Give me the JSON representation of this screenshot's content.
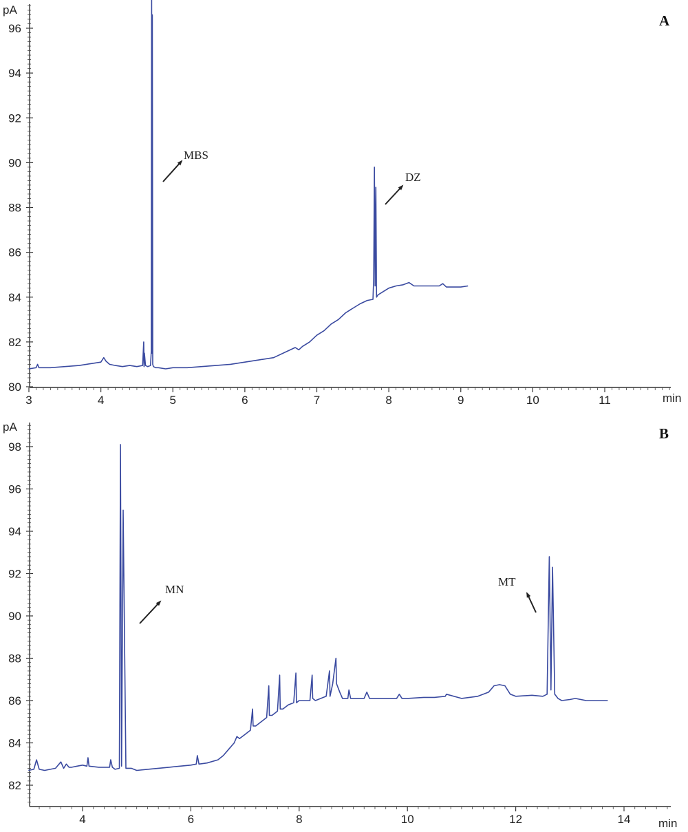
{
  "chart_data": [
    {
      "type": "line",
      "panel_label": "A",
      "ylabel": "pA",
      "xlabel": "min",
      "xlim": [
        3,
        12
      ],
      "ylim": [
        80,
        97.8
      ],
      "xticks": [
        3,
        4,
        5,
        6,
        7,
        8,
        9,
        10,
        11
      ],
      "yticks": [
        80,
        82,
        84,
        86,
        88,
        90,
        92,
        94,
        96
      ],
      "grid": false,
      "color": "#3a4aa0",
      "series": [
        {
          "x": [
            3.0,
            3.1,
            3.12,
            3.14,
            3.3,
            3.5,
            3.7,
            3.9,
            4.0,
            4.04,
            4.07,
            4.12,
            4.2,
            4.3,
            4.4,
            4.5,
            4.58,
            4.595,
            4.6,
            4.605,
            4.62,
            4.65,
            4.69,
            4.7,
            4.705,
            4.71,
            4.715,
            4.72,
            4.73,
            4.76,
            4.8,
            4.9,
            5.0,
            5.2,
            5.4,
            5.6,
            5.8,
            6.0,
            6.2,
            6.4,
            6.6,
            6.7,
            6.75,
            6.8,
            6.9,
            7.0,
            7.1,
            7.2,
            7.3,
            7.4,
            7.5,
            7.6,
            7.7,
            7.78,
            7.79,
            7.8,
            7.81,
            7.82,
            7.83,
            7.85,
            7.9,
            8.0,
            8.1,
            8.2,
            8.28,
            8.35,
            8.5,
            8.6,
            8.7,
            8.75,
            8.8,
            8.9,
            9.0,
            9.1
          ],
          "y": [
            80.8,
            80.85,
            81.0,
            80.85,
            80.85,
            80.9,
            80.95,
            81.05,
            81.1,
            81.3,
            81.15,
            81.0,
            80.95,
            80.9,
            80.95,
            80.9,
            80.95,
            82.0,
            80.9,
            81.5,
            80.95,
            80.9,
            80.95,
            81.6,
            97.3,
            81.5,
            96.6,
            81.0,
            80.9,
            80.85,
            80.85,
            80.8,
            80.85,
            80.85,
            80.9,
            80.95,
            81.0,
            81.1,
            81.2,
            81.3,
            81.6,
            81.75,
            81.65,
            81.8,
            82.0,
            82.3,
            82.5,
            82.8,
            83.0,
            83.3,
            83.5,
            83.7,
            83.85,
            83.9,
            84.9,
            89.8,
            84.5,
            88.9,
            84.0,
            84.1,
            84.2,
            84.4,
            84.5,
            84.55,
            84.65,
            84.5,
            84.5,
            84.5,
            84.5,
            84.6,
            84.45,
            84.45,
            84.45,
            84.5
          ]
        }
      ],
      "annotations": [
        "MBS",
        "DZ"
      ]
    },
    {
      "type": "line",
      "panel_label": "B",
      "ylabel": "pA",
      "xlabel": "min",
      "xlim": [
        3,
        15
      ],
      "ylim": [
        81.2,
        99.9
      ],
      "xticks": [
        4,
        6,
        8,
        10,
        12,
        14
      ],
      "yticks": [
        82,
        84,
        86,
        88,
        90,
        92,
        94,
        96,
        98
      ],
      "grid": false,
      "color": "#3a4aa0",
      "series": [
        {
          "x": [
            3.0,
            3.1,
            3.15,
            3.2,
            3.3,
            3.5,
            3.6,
            3.65,
            3.7,
            3.75,
            3.8,
            3.9,
            4.0,
            4.08,
            4.1,
            4.12,
            4.3,
            4.5,
            4.52,
            4.55,
            4.6,
            4.68,
            4.7,
            4.72,
            4.75,
            4.8,
            4.9,
            5.0,
            5.2,
            5.4,
            5.6,
            5.8,
            6.0,
            6.1,
            6.12,
            6.15,
            6.3,
            6.5,
            6.6,
            6.7,
            6.8,
            6.85,
            6.9,
            7.0,
            7.1,
            7.14,
            7.15,
            7.2,
            7.3,
            7.4,
            7.44,
            7.45,
            7.5,
            7.6,
            7.64,
            7.65,
            7.7,
            7.8,
            7.9,
            7.94,
            7.95,
            8.0,
            8.1,
            8.2,
            8.24,
            8.25,
            8.3,
            8.4,
            8.5,
            8.56,
            8.57,
            8.62,
            8.68,
            8.69,
            8.75,
            8.8,
            8.9,
            8.92,
            8.95,
            9.0,
            9.2,
            9.25,
            9.3,
            9.5,
            9.8,
            9.85,
            9.9,
            10.0,
            10.3,
            10.5,
            10.7,
            10.72,
            11.0,
            11.3,
            11.5,
            11.6,
            11.7,
            11.8,
            11.9,
            12.0,
            12.3,
            12.5,
            12.58,
            12.62,
            12.65,
            12.68,
            12.72,
            12.78,
            12.85,
            13.0,
            13.1,
            13.3,
            13.5,
            13.7
          ],
          "y": [
            82.7,
            82.75,
            83.2,
            82.75,
            82.7,
            82.8,
            83.1,
            82.8,
            83.0,
            82.85,
            82.85,
            82.9,
            82.95,
            82.9,
            83.3,
            82.9,
            82.85,
            82.85,
            83.2,
            82.85,
            82.75,
            82.8,
            98.1,
            82.9,
            95.0,
            82.8,
            82.8,
            82.7,
            82.75,
            82.8,
            82.85,
            82.9,
            82.95,
            83.0,
            83.4,
            83.0,
            83.05,
            83.2,
            83.4,
            83.7,
            84.0,
            84.3,
            84.2,
            84.4,
            84.6,
            85.6,
            84.8,
            84.8,
            85.0,
            85.2,
            86.7,
            85.3,
            85.3,
            85.5,
            87.2,
            85.6,
            85.6,
            85.8,
            85.9,
            87.3,
            85.9,
            86.0,
            86.0,
            86.0,
            87.2,
            86.1,
            86.0,
            86.1,
            86.2,
            87.4,
            86.2,
            86.8,
            88.0,
            86.8,
            86.4,
            86.1,
            86.1,
            86.5,
            86.1,
            86.1,
            86.1,
            86.4,
            86.1,
            86.1,
            86.1,
            86.3,
            86.1,
            86.1,
            86.15,
            86.15,
            86.2,
            86.3,
            86.1,
            86.2,
            86.4,
            86.7,
            86.75,
            86.7,
            86.3,
            86.2,
            86.25,
            86.2,
            86.3,
            92.8,
            86.5,
            92.3,
            86.3,
            86.1,
            86.0,
            86.05,
            86.1,
            86.0,
            86.0,
            86.0
          ]
        }
      ],
      "annotations": [
        "MN",
        "MT"
      ]
    }
  ]
}
